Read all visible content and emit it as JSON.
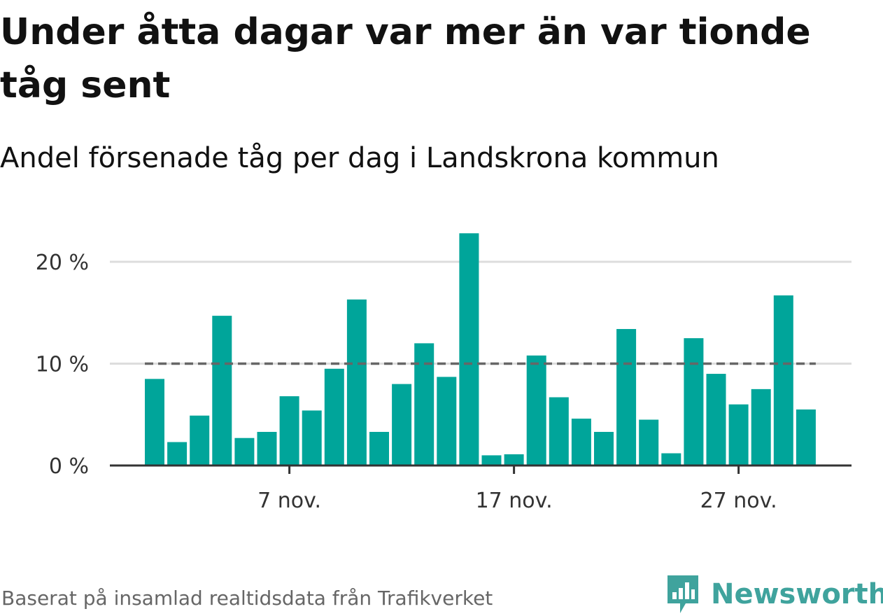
{
  "title": "Under åtta dagar var mer än var tionde tåg sent",
  "subtitle": "Andel försenade tåg per dag i Landskrona kommun",
  "source": "Baserat på insamlad realtidsdata från Trafikverket",
  "logo_text": "Newsworthy",
  "colors": {
    "bar": "#00a59a",
    "reference_line": "#666666",
    "grid": "#dddddd",
    "axis": "#333333",
    "logo": "#3fa39d"
  },
  "chart_data": {
    "type": "bar",
    "x": [
      1,
      2,
      3,
      4,
      5,
      6,
      7,
      8,
      9,
      10,
      11,
      12,
      13,
      14,
      15,
      16,
      17,
      18,
      19,
      20,
      21,
      22,
      23,
      24,
      25,
      26,
      27,
      28,
      29,
      30
    ],
    "values": [
      8.5,
      2.3,
      4.9,
      14.7,
      2.7,
      3.3,
      6.8,
      5.4,
      9.5,
      16.3,
      3.3,
      8.0,
      12.0,
      8.7,
      22.8,
      1.0,
      1.1,
      10.8,
      6.7,
      4.6,
      3.3,
      13.4,
      4.5,
      1.2,
      12.5,
      9.0,
      6.0,
      7.5,
      16.7,
      5.5
    ],
    "ylim": [
      0,
      25
    ],
    "yticks": [
      0,
      10,
      20
    ],
    "ytick_labels": [
      "0 %",
      "10 %",
      "20 %"
    ],
    "xticks": [
      7,
      17,
      27
    ],
    "xtick_labels": [
      "7 nov.",
      "17 nov.",
      "27 nov."
    ],
    "reference_value": 10,
    "grid": true
  }
}
